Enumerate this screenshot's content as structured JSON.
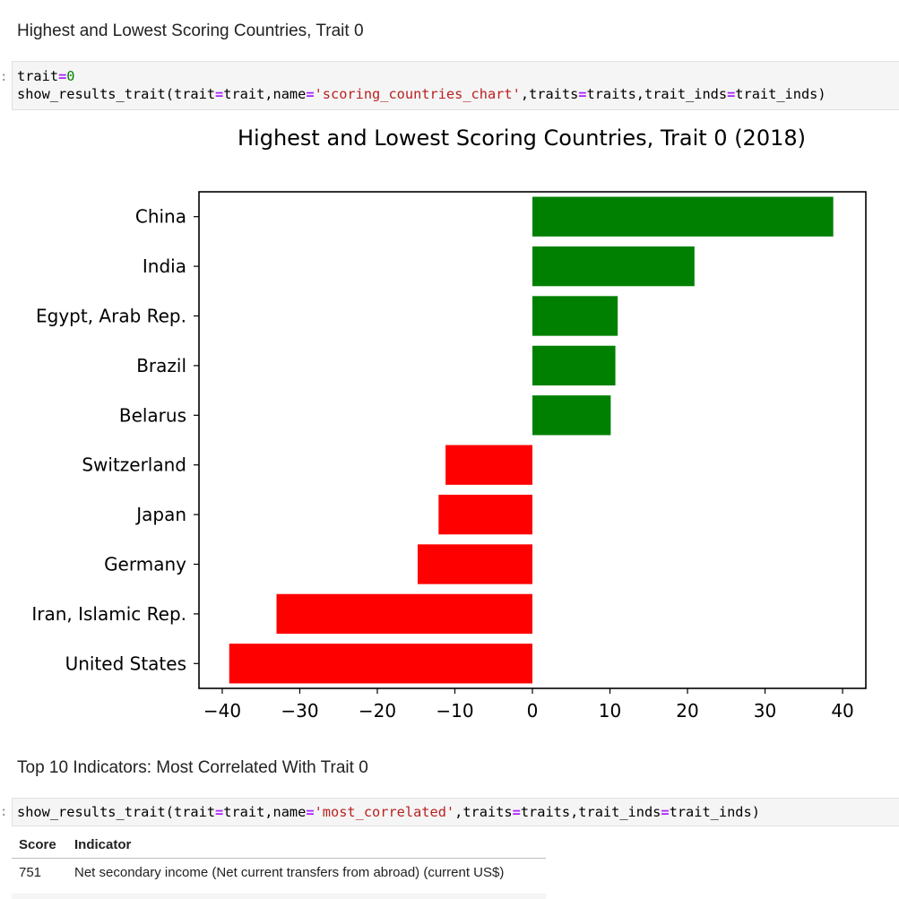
{
  "cells": {
    "heading1": "Highest and Lowest Scoring Countries, Trait 0",
    "heading2": "Top 10 Indicators: Most Correlated With Trait 0",
    "prompt_marker": ":",
    "code1": {
      "line1": [
        "trait",
        "=",
        "0"
      ],
      "line2": [
        "show_results_trait(trait",
        "=",
        "trait,name",
        "=",
        "'scoring_countries_chart'",
        ",traits",
        "=",
        "traits,trait_inds",
        "=",
        "trait_inds)"
      ]
    },
    "code2": {
      "line1": [
        "show_results_trait(trait",
        "=",
        "trait,name",
        "=",
        "'most_correlated'",
        ",traits",
        "=",
        "traits,trait_inds",
        "=",
        "trait_inds)"
      ]
    }
  },
  "chart_data": {
    "type": "bar",
    "orientation": "horizontal",
    "title": "Highest and Lowest Scoring Countries, Trait 0 (2018)",
    "xlabel": "",
    "ylabel": "",
    "categories": [
      "China",
      "India",
      "Egypt, Arab Rep.",
      "Brazil",
      "Belarus",
      "Switzerland",
      "Japan",
      "Germany",
      "Iran, Islamic Rep.",
      "United States"
    ],
    "values": [
      38.8,
      20.9,
      11.0,
      10.7,
      10.1,
      -11.2,
      -12.1,
      -14.8,
      -33.0,
      -39.1
    ],
    "xlim": [
      -43,
      43
    ],
    "xticks": [
      -40,
      -30,
      -20,
      -10,
      0,
      10,
      20,
      30,
      40
    ],
    "xtick_labels": [
      "−40",
      "−30",
      "−20",
      "−10",
      "0",
      "10",
      "20",
      "30",
      "40"
    ],
    "positive_color": "#008000",
    "negative_color": "#ff0000",
    "grid": false
  },
  "table": {
    "headers": [
      "Score",
      "Indicator"
    ],
    "rows": [
      [
        "751",
        "Net secondary income (Net current transfers from abroad) (current US$)"
      ]
    ]
  }
}
